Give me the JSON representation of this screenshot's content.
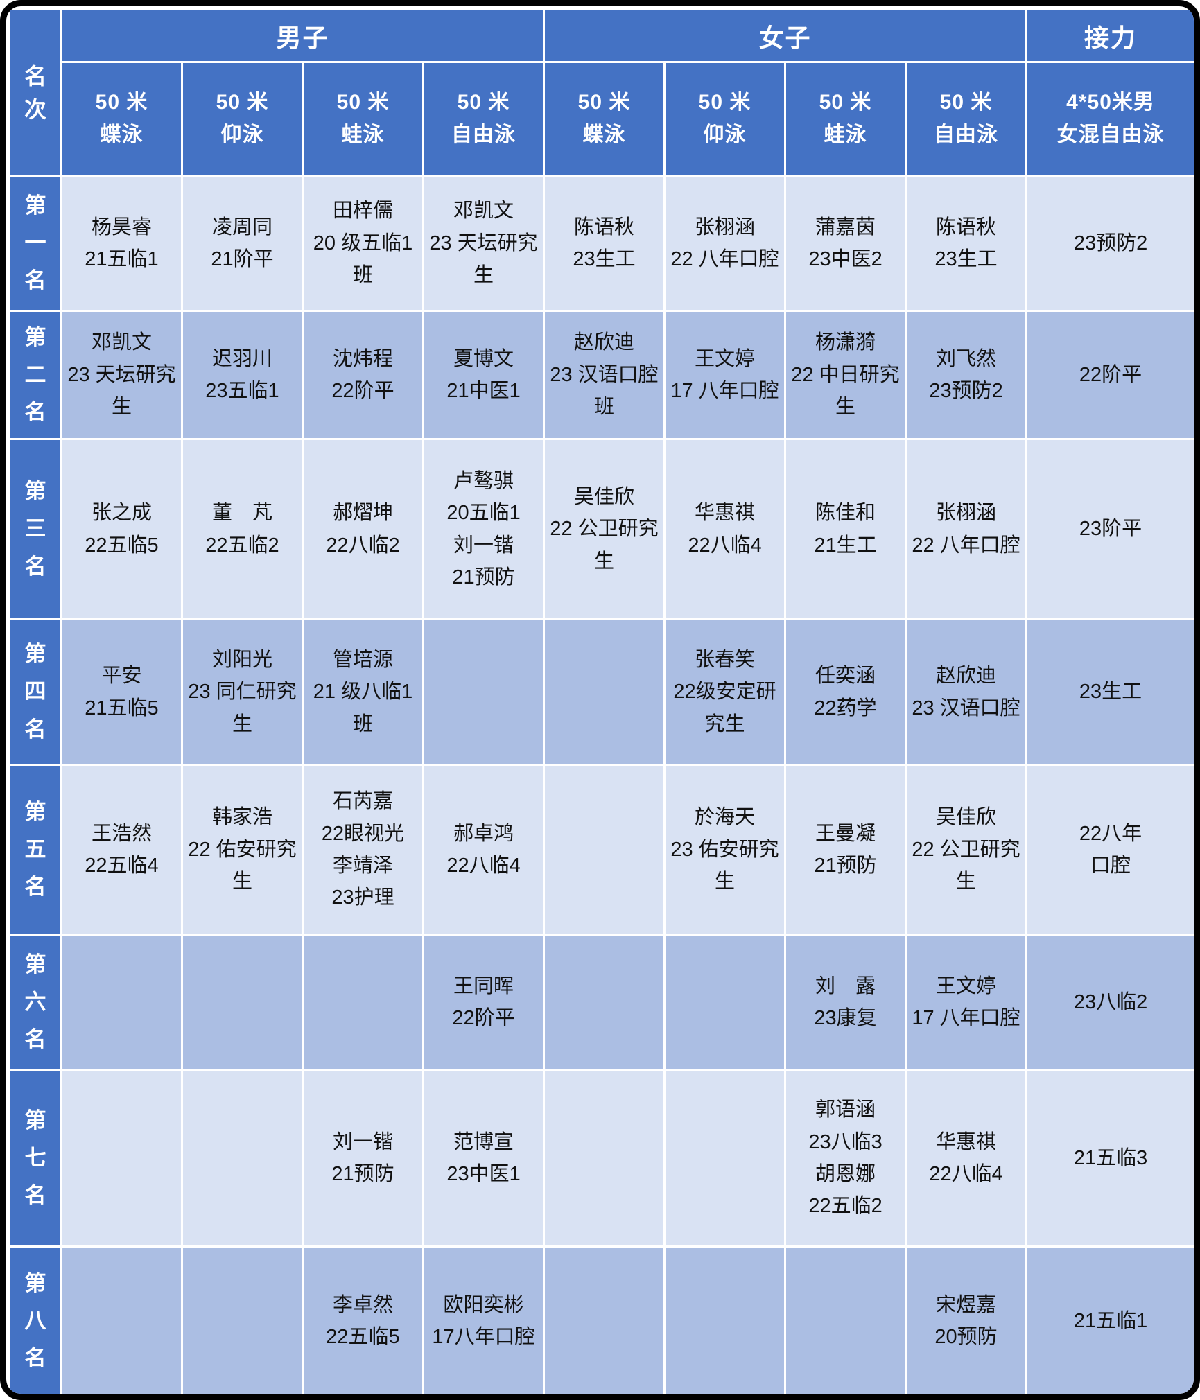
{
  "colors": {
    "header_blue": "#4472c4",
    "row_light": "#d9e2f3",
    "row_medium": "#abbee3",
    "gridline": "#ffffff",
    "frame": "#000000",
    "header_text": "#ffffff",
    "cell_text": "#111111"
  },
  "table": {
    "rank_header": "名\n次",
    "groups": {
      "men": "男子",
      "women": "女子",
      "relay": "接力"
    },
    "event_headers": [
      "50 米\n蝶泳",
      "50 米\n仰泳",
      "50 米\n蛙泳",
      "50 米\n自由泳",
      "50 米\n蝶泳",
      "50 米\n仰泳",
      "50 米\n蛙泳",
      "50 米\n自由泳",
      "4*50米男\n女混自由泳"
    ],
    "rows": [
      {
        "rank": "第\n一\n名",
        "cells": [
          "杨昊睿\n21五临1",
          "凌周同\n21阶平",
          "田梓儒\n20 级五临1班",
          "邓凯文\n23 天坛研究生",
          "陈语秋\n23生工",
          "张栩涵\n22 八年口腔",
          "蒲嘉茵\n23中医2",
          "陈语秋\n23生工",
          "23预防2"
        ]
      },
      {
        "rank": "第\n二\n名",
        "cells": [
          "邓凯文\n23 天坛研究生",
          "迟羽川\n23五临1",
          "沈炜程\n22阶平",
          "夏博文\n21中医1",
          "赵欣迪\n23 汉语口腔班",
          "王文婷\n17 八年口腔",
          "杨潇漪\n22 中日研究生",
          "刘飞然\n23预防2",
          "22阶平"
        ]
      },
      {
        "rank": "第\n三\n名",
        "cells": [
          "张之成\n22五临5",
          "董　芃\n22五临2",
          "郝熠坤\n22八临2",
          "卢骜骐\n20五临1\n刘一锴\n21预防",
          "吴佳欣\n22 公卫研究生",
          "华惠祺\n22八临4",
          "陈佳和\n21生工",
          "张栩涵\n22 八年口腔",
          "23阶平"
        ]
      },
      {
        "rank": "第\n四\n名",
        "cells": [
          "平安\n21五临5",
          "刘阳光\n23 同仁研究生",
          "管培源\n21 级八临1班",
          "",
          "",
          "张春笑\n22级安定研究生",
          "任奕涵\n22药学",
          "赵欣迪\n23 汉语口腔",
          "23生工"
        ]
      },
      {
        "rank": "第\n五\n名",
        "cells": [
          "王浩然\n22五临4",
          "韩家浩\n22 佑安研究生",
          "石芮嘉\n22眼视光\n李靖泽\n23护理",
          "郝卓鸿\n22八临4",
          "",
          "於海天\n23 佑安研究生",
          "王曼凝\n21预防",
          "吴佳欣\n22 公卫研究生",
          "22八年\n口腔"
        ]
      },
      {
        "rank": "第\n六\n名",
        "cells": [
          "",
          "",
          "",
          "王同晖\n22阶平",
          "",
          "",
          "刘　露\n23康复",
          "王文婷\n17 八年口腔",
          "23八临2"
        ]
      },
      {
        "rank": "第\n七\n名",
        "cells": [
          "",
          "",
          "刘一锴\n21预防",
          "范博宣\n23中医1",
          "",
          "",
          "郭语涵\n23八临3\n胡恩娜\n22五临2",
          "华惠祺\n22八临4",
          "21五临3"
        ]
      },
      {
        "rank": "第\n八\n名",
        "cells": [
          "",
          "",
          "李卓然\n22五临5",
          "欧阳奕彬\n17八年口腔",
          "",
          "",
          "",
          "宋煜嘉\n20预防",
          "21五临1"
        ]
      }
    ]
  }
}
